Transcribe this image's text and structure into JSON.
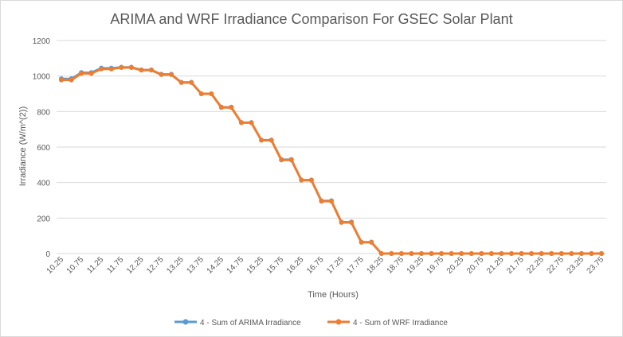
{
  "chart_data": {
    "type": "line",
    "title": "ARIMA and WRF Irradiance Comparison For GSEC Solar Plant",
    "xlabel": "Time (Hours)",
    "ylabel": "Irradiance (W/m^(2))",
    "ylim": [
      0,
      1200
    ],
    "yticks": [
      0,
      200,
      400,
      600,
      800,
      1000,
      1200
    ],
    "grid": true,
    "legend": "bottom",
    "x": [
      10.25,
      10.5,
      10.75,
      11,
      11.25,
      11.5,
      11.75,
      12,
      12.25,
      12.5,
      12.75,
      13,
      13.25,
      13.5,
      13.75,
      14,
      14.25,
      14.5,
      14.75,
      15,
      15.25,
      15.5,
      15.75,
      16,
      16.25,
      16.5,
      16.75,
      17,
      17.25,
      17.5,
      17.75,
      18,
      18.25,
      18.5,
      18.75,
      19,
      19.25,
      19.5,
      19.75,
      20,
      20.25,
      20.5,
      20.75,
      21,
      21.25,
      21.5,
      21.75,
      22,
      22.25,
      22.5,
      22.75,
      23,
      23.25,
      23.5,
      23.75
    ],
    "xtick_labels": [
      "10.25",
      "10.75",
      "11.25",
      "11.75",
      "12.25",
      "12.75",
      "13.25",
      "13.75",
      "14.25",
      "14.75",
      "15.25",
      "15.75",
      "16.25",
      "16.75",
      "17.25",
      "17.75",
      "18.25",
      "18.75",
      "19.25",
      "19.75",
      "20.25",
      "20.75",
      "21.25",
      "21.75",
      "22.25",
      "22.75",
      "23.25",
      "23.75"
    ],
    "series": [
      {
        "name": "4 - Sum of ARIMA Irradiance",
        "color": "#5b9bd5",
        "values": [
          985,
          985,
          1020,
          1020,
          1045,
          1045,
          1050,
          1050,
          1035,
          1035,
          1010,
          1010,
          965,
          965,
          900,
          900,
          825,
          825,
          738,
          738,
          640,
          640,
          530,
          530,
          415,
          415,
          298,
          298,
          178,
          178,
          65,
          65,
          0,
          0,
          0,
          0,
          0,
          0,
          0,
          0,
          0,
          0,
          0,
          0,
          0,
          0,
          0,
          0,
          0,
          0,
          0,
          0,
          0,
          0,
          0
        ]
      },
      {
        "name": "4 - Sum of WRF Irradiance",
        "color": "#ed7d31",
        "values": [
          978,
          978,
          1015,
          1015,
          1040,
          1040,
          1048,
          1048,
          1033,
          1033,
          1008,
          1008,
          963,
          963,
          900,
          900,
          823,
          823,
          737,
          737,
          638,
          638,
          527,
          527,
          413,
          413,
          295,
          295,
          175,
          175,
          63,
          63,
          0,
          0,
          0,
          0,
          0,
          0,
          0,
          0,
          0,
          0,
          0,
          0,
          0,
          0,
          0,
          0,
          0,
          0,
          0,
          0,
          0,
          0,
          0
        ]
      }
    ]
  }
}
